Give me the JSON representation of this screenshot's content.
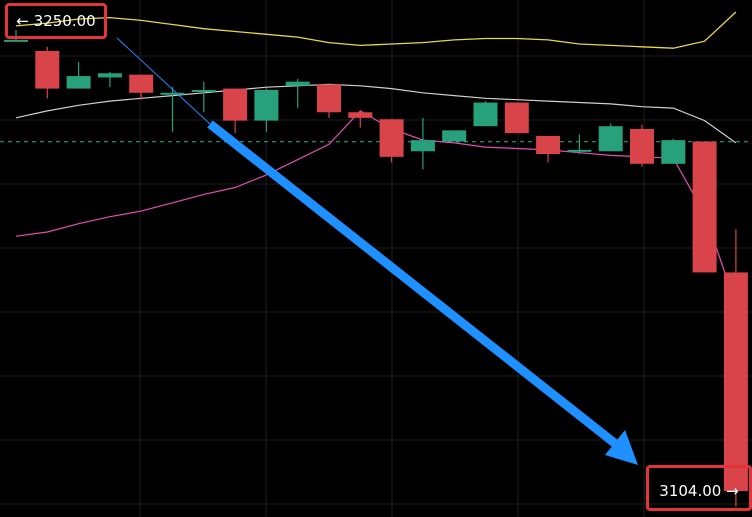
{
  "labels": {
    "start": "3250.00",
    "end": "3104.00",
    "start_arrow": "←",
    "end_arrow": "→"
  },
  "colors": {
    "up": "#26a17b",
    "down": "#d9434a",
    "grid": "#1e1e1e",
    "upper_band": "#e6d84a",
    "middle_band": "#cfcfcf",
    "lower_band": "#e04fb0",
    "arrow": "#1e90ff",
    "dashed_level": "#2fae84",
    "label_border": "#e5333a"
  },
  "chart_data": {
    "type": "candlestick",
    "y_axis": {
      "min": 3085,
      "max": 3262
    },
    "dashed_level": 3215.4,
    "candles": [
      {
        "o": 3252.0,
        "h": 3255.5,
        "l": 3252.0,
        "c": 3252.0
      },
      {
        "o": 3248.0,
        "h": 3249.5,
        "l": 3231.0,
        "c": 3234.5
      },
      {
        "o": 3234.5,
        "h": 3244.0,
        "l": 3234.5,
        "c": 3239.0
      },
      {
        "o": 3238.5,
        "h": 3240.5,
        "l": 3235.0,
        "c": 3240.0
      },
      {
        "o": 3239.5,
        "h": 3239.5,
        "l": 3230.5,
        "c": 3233.0
      },
      {
        "o": 3232.5,
        "h": 3235.0,
        "l": 3219.0,
        "c": 3233.0
      },
      {
        "o": 3233.5,
        "h": 3237.0,
        "l": 3226.0,
        "c": 3234.0
      },
      {
        "o": 3234.5,
        "h": 3234.5,
        "l": 3218.5,
        "c": 3223.0
      },
      {
        "o": 3223.0,
        "h": 3234.5,
        "l": 3219.0,
        "c": 3234.0
      },
      {
        "o": 3235.5,
        "h": 3238.0,
        "l": 3227.5,
        "c": 3237.0
      },
      {
        "o": 3236.0,
        "h": 3236.0,
        "l": 3224.0,
        "c": 3226.0
      },
      {
        "o": 3226.0,
        "h": 3226.5,
        "l": 3220.5,
        "c": 3224.0
      },
      {
        "o": 3223.5,
        "h": 3223.5,
        "l": 3208.0,
        "c": 3210.0
      },
      {
        "o": 3212.0,
        "h": 3224.0,
        "l": 3205.5,
        "c": 3216.0
      },
      {
        "o": 3215.5,
        "h": 3219.5,
        "l": 3215.5,
        "c": 3219.5
      },
      {
        "o": 3221.0,
        "h": 3230.0,
        "l": 3221.0,
        "c": 3229.5
      },
      {
        "o": 3229.5,
        "h": 3229.5,
        "l": 3218.5,
        "c": 3218.5
      },
      {
        "o": 3217.5,
        "h": 3217.5,
        "l": 3208.0,
        "c": 3211.0
      },
      {
        "o": 3212.0,
        "h": 3218.0,
        "l": 3211.0,
        "c": 3212.5
      },
      {
        "o": 3212.0,
        "h": 3222.0,
        "l": 3212.0,
        "c": 3221.0
      },
      {
        "o": 3220.0,
        "h": 3221.5,
        "l": 3206.5,
        "c": 3207.5
      },
      {
        "o": 3207.5,
        "h": 3216.5,
        "l": 3207.5,
        "c": 3216.0
      },
      {
        "o": 3215.5,
        "h": 3215.5,
        "l": 3168.5,
        "c": 3168.5
      },
      {
        "o": 3168.5,
        "h": 3184.0,
        "l": 3084.5,
        "c": 3090.0
      }
    ],
    "upper_band": [
      3257.0,
      3258.0,
      3259.5,
      3260.0,
      3259.0,
      3257.5,
      3256.0,
      3255.0,
      3254.0,
      3253.0,
      3251.0,
      3250.0,
      3250.5,
      3251.0,
      3252.0,
      3252.5,
      3252.5,
      3252.0,
      3250.5,
      3250.0,
      3249.5,
      3249.0,
      3251.5,
      3262.0
    ],
    "middle_band": [
      3224.0,
      3226.5,
      3228.5,
      3230.0,
      3231.0,
      3232.0,
      3233.0,
      3234.0,
      3235.0,
      3235.5,
      3236.0,
      3235.5,
      3234.5,
      3233.0,
      3232.0,
      3231.0,
      3230.5,
      3230.0,
      3229.5,
      3229.0,
      3228.0,
      3227.5,
      3223.0,
      3215.0
    ],
    "lower_band": [
      3181.5,
      3183.0,
      3186.0,
      3188.5,
      3190.5,
      3193.5,
      3196.5,
      3199.0,
      3203.5,
      3209.0,
      3214.5,
      3226.5,
      3220.0,
      3216.0,
      3215.0,
      3213.5,
      3213.0,
      3212.5,
      3211.5,
      3210.5,
      3210.0,
      3209.5,
      3189.5,
      3157.0
    ]
  }
}
